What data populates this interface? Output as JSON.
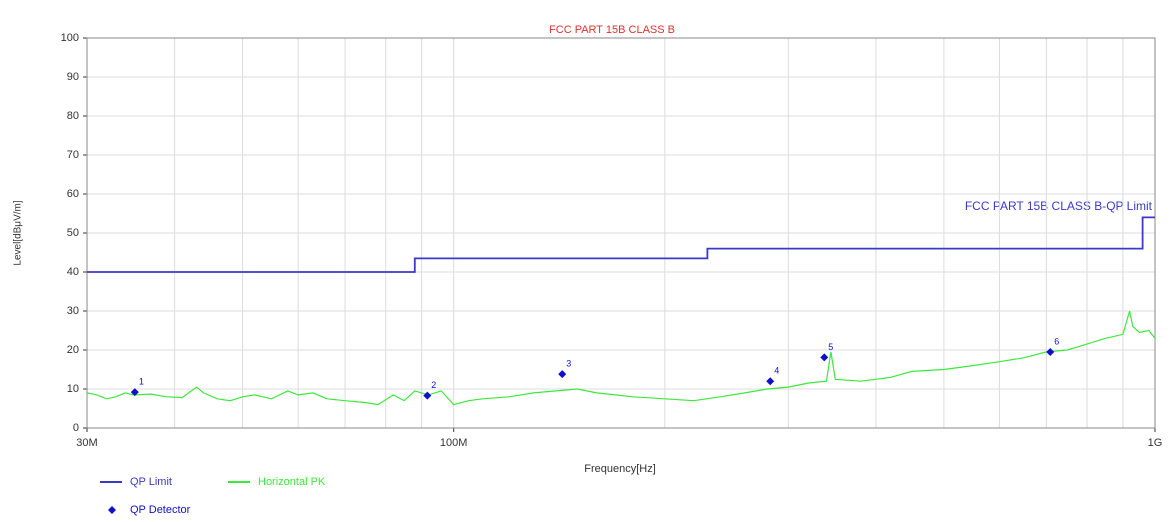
{
  "chart_data": {
    "type": "line",
    "title": "FCC PART 15B CLASS B",
    "annotation": "FCC PART 15B CLASS B-QP Limit",
    "xlabel": "Frequency[Hz]",
    "ylabel": "Level[dBμV/m]",
    "xscale": "log",
    "grid": true,
    "xlim": [
      30000000,
      1000000000
    ],
    "ylim": [
      0,
      100
    ],
    "xticks": [
      {
        "value": 30000000,
        "label": "30M"
      },
      {
        "value": 100000000,
        "label": "100M"
      },
      {
        "value": 1000000000,
        "label": "1G"
      }
    ],
    "xminor_ticks": [
      40000000,
      50000000,
      60000000,
      70000000,
      80000000,
      90000000,
      200000000,
      300000000,
      400000000,
      500000000,
      600000000,
      700000000,
      800000000,
      900000000
    ],
    "yticks": [
      0,
      10,
      20,
      30,
      40,
      50,
      60,
      70,
      80,
      90,
      100
    ],
    "series": [
      {
        "name": "QP Limit",
        "color": "#3a3ac8",
        "x": [
          30000000,
          88000000,
          88000000,
          230000000,
          230000000,
          960000000,
          960000000,
          1000000000
        ],
        "values": [
          40,
          40,
          43.5,
          43.5,
          46,
          46,
          54,
          54
        ]
      },
      {
        "name": "Horizontal PK",
        "color": "#3de83d",
        "x": [
          30000000,
          31000000,
          32000000,
          33000000,
          34000000,
          35000000,
          37000000,
          39000000,
          41000000,
          43000000,
          44000000,
          46000000,
          48000000,
          50000000,
          52000000,
          55000000,
          58000000,
          60000000,
          63000000,
          66000000,
          70000000,
          75000000,
          78000000,
          82000000,
          85000000,
          88000000,
          92000000,
          96000000,
          100000000,
          105000000,
          110000000,
          120000000,
          130000000,
          140000000,
          150000000,
          160000000,
          170000000,
          180000000,
          200000000,
          220000000,
          240000000,
          260000000,
          280000000,
          300000000,
          320000000,
          340000000,
          345000000,
          350000000,
          380000000,
          400000000,
          420000000,
          450000000,
          500000000,
          550000000,
          600000000,
          650000000,
          700000000,
          750000000,
          800000000,
          850000000,
          900000000,
          920000000,
          930000000,
          950000000,
          980000000,
          1000000000
        ],
        "values": [
          9,
          8.5,
          7.5,
          8,
          9,
          8.5,
          8.7,
          8,
          7.8,
          10.5,
          9,
          7.5,
          7,
          8,
          8.5,
          7.5,
          9.5,
          8.5,
          9,
          7.5,
          7,
          6.5,
          6,
          8.5,
          7,
          9.5,
          8.5,
          9.5,
          6,
          7,
          7.5,
          8,
          9,
          9.5,
          10,
          9,
          8.5,
          8,
          7.5,
          7,
          8,
          9,
          10,
          10.5,
          11.5,
          12,
          19.5,
          12.5,
          12,
          12.5,
          13,
          14.5,
          15,
          16,
          17,
          18,
          19.5,
          20,
          21.5,
          23,
          24,
          30,
          26,
          24.5,
          25,
          23
        ]
      },
      {
        "name": "QP Detector",
        "color": "#1010c8",
        "marker": "diamond",
        "labels": [
          "1",
          "2",
          "3",
          "4",
          "5",
          "6"
        ],
        "x": [
          35100000,
          91700000,
          142800000,
          282700000,
          337600000,
          709000000
        ],
        "values": [
          9.2,
          8.3,
          13.8,
          12,
          18.1,
          19.5
        ]
      }
    ]
  }
}
